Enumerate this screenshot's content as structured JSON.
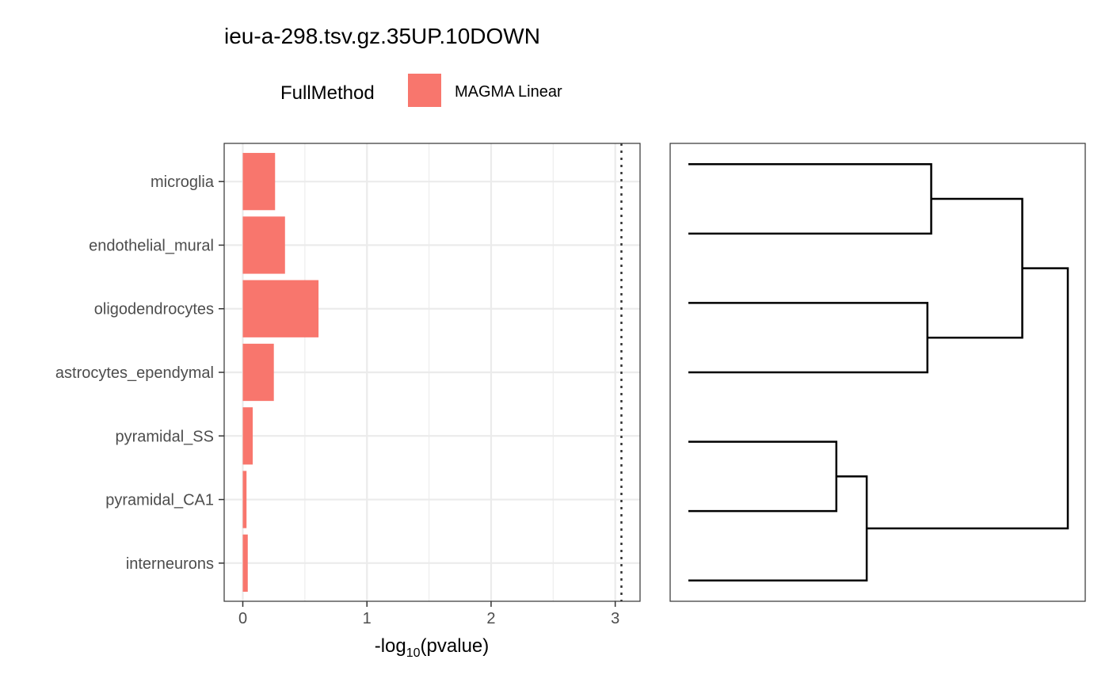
{
  "chart_data": [
    {
      "type": "bar",
      "orientation": "horizontal",
      "title": "ieu-a-298.tsv.gz.35UP.10DOWN",
      "legend": {
        "title": "FullMethod",
        "placement": "top",
        "entries": [
          {
            "name": "MAGMA Linear",
            "color": "#F8766D"
          }
        ]
      },
      "xlabel": {
        "prefix": "-log",
        "subscript": "10",
        "suffix": "(pvalue)"
      },
      "ylabel": "",
      "xlim": [
        -0.15,
        3.2
      ],
      "xticks": [
        0,
        1,
        2,
        3
      ],
      "xtick_labels": [
        "0",
        "1",
        "2",
        "3"
      ],
      "grid": true,
      "categories": [
        "microglia",
        "endothelial_mural",
        "oligodendrocytes",
        "astrocytes_ependymal",
        "pyramidal_SS",
        "pyramidal_CA1",
        "interneurons"
      ],
      "series": [
        {
          "name": "MAGMA Linear",
          "color": "#F8766D",
          "values": [
            0.26,
            0.34,
            0.61,
            0.25,
            0.08,
            0.03,
            0.04
          ]
        }
      ],
      "threshold_line": {
        "value": 3.05,
        "style": "dotted"
      }
    },
    {
      "type": "dendrogram",
      "leaves_top_to_bottom": [
        "microglia",
        "endothelial_mural",
        "oligodendrocytes",
        "astrocytes_ependymal",
        "pyramidal_SS",
        "pyramidal_CA1",
        "interneurons"
      ],
      "merges": [
        {
          "a": "microglia",
          "b": "endothelial_mural",
          "height": 0.36
        },
        {
          "a": "oligodendrocytes",
          "b": "astrocytes_ependymal",
          "height": 0.37
        },
        {
          "a": "pyramidal_SS",
          "b": "pyramidal_CA1",
          "height": 0.61
        },
        {
          "a": "m1",
          "b": "m2",
          "height": 0.12
        },
        {
          "a": "m3",
          "b": "interneurons",
          "height": 0.53
        },
        {
          "a": "m4",
          "b": "m5",
          "height": 0.0
        }
      ],
      "height_note": "heights relative, root at 0, leaves at 1"
    }
  ]
}
